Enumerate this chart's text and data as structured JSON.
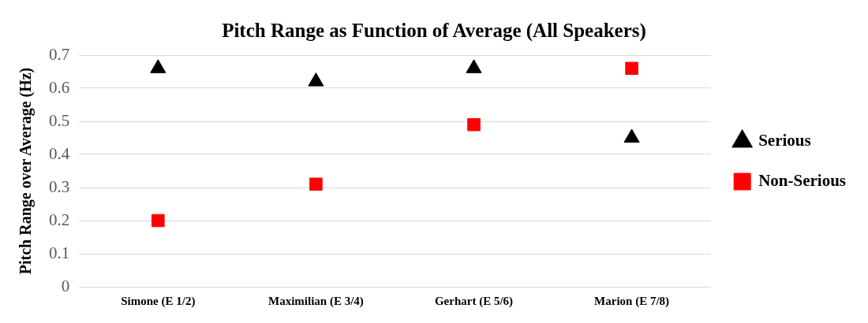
{
  "chart_data": {
    "type": "scatter",
    "title": "Pitch Range as Function of Average (All Speakers)",
    "ylabel": "Pitch Range over Average (Hz)",
    "categories": [
      "Simone (E 1/2)",
      "Maximilian (E 3/4)",
      "Gerhart (E 5/6)",
      "Marion (E 7/8)"
    ],
    "series": [
      {
        "name": "Serious",
        "color": "#000000",
        "marker": "triangle",
        "values": [
          0.66,
          0.62,
          0.66,
          0.45
        ]
      },
      {
        "name": "Non-Serious",
        "color": "#ff0000",
        "marker": "square",
        "values": [
          0.2,
          0.31,
          0.49,
          0.66
        ]
      }
    ],
    "ylim": [
      0,
      0.7
    ],
    "yticks": [
      0,
      0.1,
      0.2,
      0.3,
      0.4,
      0.5,
      0.6,
      0.7
    ],
    "grid": "y",
    "legend": "right"
  }
}
